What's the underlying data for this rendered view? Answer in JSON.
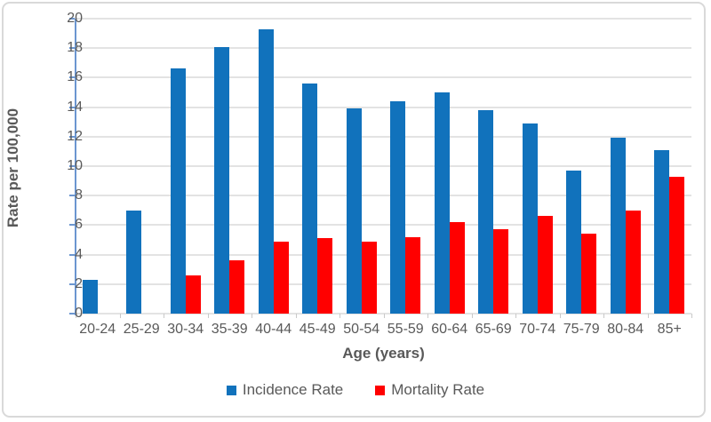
{
  "chart_data": {
    "type": "bar",
    "title": "",
    "categories": [
      "20-24",
      "25-29",
      "30-34",
      "35-39",
      "40-44",
      "45-49",
      "50-54",
      "55-59",
      "60-64",
      "65-69",
      "70-74",
      "75-79",
      "80-84",
      "85+"
    ],
    "series": [
      {
        "name": "Incidence Rate",
        "color": "#1172BC",
        "values": [
          2.3,
          7.0,
          16.6,
          18.1,
          19.3,
          15.6,
          13.9,
          14.4,
          15.0,
          13.8,
          12.9,
          9.7,
          11.9,
          11.1
        ]
      },
      {
        "name": "Mortality Rate",
        "color": "#FF0000",
        "values": [
          null,
          null,
          2.6,
          3.6,
          4.9,
          5.1,
          4.9,
          5.2,
          6.2,
          5.7,
          6.6,
          5.4,
          7.0,
          9.3
        ]
      }
    ],
    "xlabel": "Age (years)",
    "ylabel": "Rate per 100,000",
    "ylim": [
      0,
      20
    ],
    "yticks": [
      0,
      2,
      4,
      6,
      8,
      10,
      12,
      14,
      16,
      18,
      20
    ],
    "grid": true,
    "legend_position": "bottom"
  },
  "colors": {
    "frame_border": "#D9D9D9",
    "gridline": "#E3E3E3",
    "y_axis_line": "#6B96D0",
    "x_tick": "#C9C9C9",
    "text": "#595959",
    "background": "#FFFFFF"
  }
}
